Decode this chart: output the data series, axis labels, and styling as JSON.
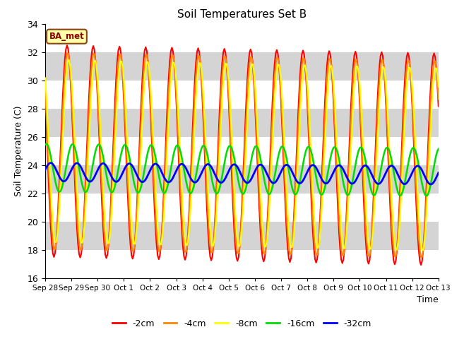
{
  "title": "Soil Temperatures Set B",
  "xlabel": "Time",
  "ylabel": "Soil Temperature (C)",
  "ylim": [
    16,
    34
  ],
  "annotation": "BA_met",
  "background_color": "#ffffff",
  "plot_bg_color": "#e0e0e0",
  "legend": [
    "-2cm",
    "-4cm",
    "-8cm",
    "-16cm",
    "-32cm"
  ],
  "colors": [
    "#ff0000",
    "#ff8800",
    "#ffff00",
    "#00dd00",
    "#0000ff"
  ],
  "linewidths": [
    1.5,
    1.5,
    1.5,
    1.8,
    2.0
  ],
  "x_tick_labels": [
    "Sep 28",
    "Sep 29",
    "Sep 30",
    "Oct 1",
    "Oct 2",
    "Oct 3",
    "Oct 4",
    "Oct 5",
    "Oct 6",
    "Oct 7",
    "Oct 8",
    "Oct 9",
    "Oct 10",
    "Oct 11",
    "Oct 12",
    "Oct 13"
  ],
  "x_tick_positions": [
    0,
    24,
    48,
    72,
    96,
    120,
    144,
    168,
    192,
    216,
    240,
    264,
    288,
    312,
    336,
    360
  ],
  "mean_temps": [
    25.0,
    25.0,
    25.0,
    23.8,
    23.5
  ],
  "amplitudes": [
    7.5,
    7.0,
    6.5,
    1.7,
    0.65
  ],
  "phase_lags": [
    0,
    0.5,
    1.5,
    5,
    9
  ],
  "trends": [
    -0.04,
    -0.04,
    -0.04,
    -0.02,
    -0.015
  ],
  "peak_hour": 14
}
